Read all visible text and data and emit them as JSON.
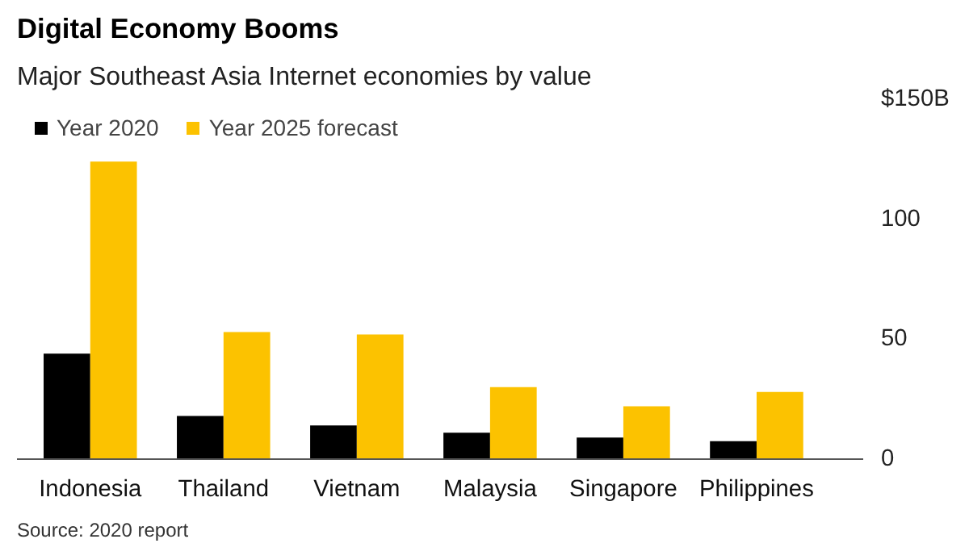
{
  "chart_data": {
    "type": "bar",
    "title": "Digital Economy Booms",
    "subtitle": "Major Southeast Asia Internet economies by value",
    "categories": [
      "Indonesia",
      "Thailand",
      "Vietnam",
      "Malaysia",
      "Singapore",
      "Philippines"
    ],
    "series": [
      {
        "name": "Year 2020",
        "color": "#000000",
        "values": [
          44,
          18,
          14,
          11,
          9,
          7.5
        ]
      },
      {
        "name": "Year 2025 forecast",
        "color": "#fcc200",
        "values": [
          124,
          53,
          52,
          30,
          22,
          28
        ]
      }
    ],
    "ylim": [
      0,
      150
    ],
    "yticks": [
      0,
      50,
      100,
      {
        "value": 150,
        "label": "$150B"
      }
    ],
    "grid": false,
    "legend": "top left",
    "annotations": [
      "Source: 2020 report"
    ]
  }
}
